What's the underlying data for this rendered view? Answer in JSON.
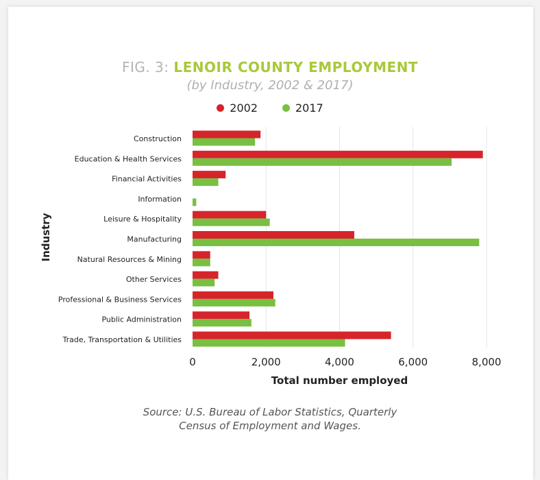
{
  "header": {
    "title_prefix": "FIG. 3:",
    "title_main": "LENOIR COUNTY EMPLOYMENT",
    "subtitle": "(by Industry, 2002 & 2017)"
  },
  "legend": [
    {
      "label": "2002",
      "color": "#d7242b"
    },
    {
      "label": "2017",
      "color": "#78bf42"
    }
  ],
  "source": {
    "line1": "Source: U.S. Bureau of Labor Statistics, Quarterly",
    "line2": "Census of Employment and Wages."
  },
  "chart_data": {
    "type": "bar",
    "orientation": "horizontal",
    "categories": [
      "Construction",
      "Education & Health Services",
      "Financial Activities",
      "Information",
      "Leisure & Hospitality",
      "Manufacturing",
      "Natural Resources & Mining",
      "Other Services",
      "Professional & Business Services",
      "Public Administration",
      "Trade, Transportation & Utilities"
    ],
    "series": [
      {
        "name": "2002",
        "color": "#d7242b",
        "values": [
          1850,
          7900,
          900,
          0,
          2000,
          4400,
          480,
          700,
          2200,
          1550,
          5400
        ]
      },
      {
        "name": "2017",
        "color": "#78bf42",
        "values": [
          1700,
          7050,
          700,
          100,
          2100,
          7800,
          480,
          600,
          2250,
          1600,
          4150
        ]
      }
    ],
    "xlabel": "Total number employed",
    "ylabel": "Industry",
    "xlim": [
      0,
      8000
    ],
    "xticks": [
      0,
      2000,
      4000,
      6000,
      8000
    ],
    "xtick_labels": [
      "0",
      "2,000",
      "4,000",
      "6,000",
      "8,000"
    ],
    "grid": "vertical"
  }
}
